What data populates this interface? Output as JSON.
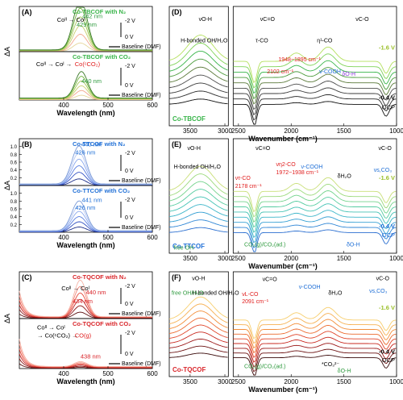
{
  "chart_data": [
    {
      "type": "line",
      "panel": "(A)",
      "sub": [
        {
          "label": "Co-TBCOF with N₂",
          "label_color": "#39b54a",
          "ylim": [
            0,
            1
          ],
          "series_colors": [
            "#e5d69a",
            "#f2a78e",
            "#c9cf6e",
            "#a6c95a",
            "#6fb33c",
            "#3b7a27"
          ],
          "peaks": [
            429,
            442
          ],
          "peak_amp": [
            0.45,
            0.78
          ],
          "annotations": [
            {
              "text": "429 nm",
              "x": 429,
              "y": 0.55,
              "color": "#2e9a3e"
            },
            {
              "text": "442 nm",
              "x": 442,
              "y": 0.74,
              "color": "#2e9a3e"
            },
            {
              "text": "Coᴵᴵ → Coᴵ",
              "x": 385,
              "y": 0.66,
              "color": "#000000"
            }
          ],
          "legend": [
            "-2 V",
            "0 V",
            "Baseline (DMF)"
          ]
        },
        {
          "label": "Co-TBCOF with CO₂",
          "label_color": "#39b54a",
          "ylim": [
            0,
            1
          ],
          "series_colors": [
            "#e5d69a",
            "#f2a78e",
            "#c9cf6e",
            "#a6c95a",
            "#6fb33c",
            "#3b7a27"
          ],
          "peaks": [
            440
          ],
          "peak_amp": [
            0.55
          ],
          "annotations": [
            {
              "text": "Coᴵᴵ → Coᴵ → ",
              "x": 338,
              "y": 0.7,
              "color": "#000000"
            },
            {
              "text": "Co(ᶜCO₂)",
              "x": 425,
              "y": 0.7,
              "color": "#e01b1b"
            },
            {
              "text": "440 nm",
              "x": 440,
              "y": 0.35,
              "color": "#2e9a3e"
            }
          ],
          "legend": [
            "-2 V",
            "0 V",
            "Baseline (DMF)"
          ]
        }
      ],
      "xlabel": "Wavelength (nm)",
      "ylabel": "ΔA",
      "xlim": [
        300,
        600
      ],
      "xticks": [
        400,
        500,
        600
      ]
    },
    {
      "type": "line",
      "panel": "(B)",
      "sub": [
        {
          "label": "Co-TTCOF with N₂",
          "label_color": "#1f6fd6",
          "ylim": [
            0,
            1.2
          ],
          "yticks": [
            0.0,
            0.2,
            0.4,
            0.6,
            0.8,
            1.0,
            1.2
          ],
          "series_colors": [
            "#1c2e8a",
            "#3352c2",
            "#5a7fe0",
            "#8aa8ee",
            "#b6c7f2",
            "#7a9ad8"
          ],
          "peaks": [
            426,
            440
          ],
          "peak_amp": [
            0.45,
            0.65
          ],
          "annotations": [
            {
              "text": "426 nm",
              "x": 426,
              "y": 0.8,
              "color": "#1f6fd6"
            },
            {
              "text": "440 nm",
              "x": 440,
              "y": 1.0,
              "color": "#1f6fd6"
            }
          ],
          "legend": [
            "-2 V",
            "0 V",
            "Baseline (DMF)"
          ]
        },
        {
          "label": "Co-TTCOF with CO₂",
          "label_color": "#1f6fd6",
          "ylim": [
            0,
            1.2
          ],
          "yticks": [
            0.0,
            0.2,
            0.4,
            0.6,
            0.8,
            1.0,
            1.2
          ],
          "series_colors": [
            "#1c2e8a",
            "#3352c2",
            "#5a7fe0",
            "#8aa8ee",
            "#b6c7f2",
            "#7a9ad8"
          ],
          "peaks": [
            426,
            441
          ],
          "peak_amp": [
            0.38,
            0.5
          ],
          "annotations": [
            {
              "text": "426 nm",
              "x": 426,
              "y": 0.58,
              "color": "#1f6fd6"
            },
            {
              "text": "441 nm",
              "x": 441,
              "y": 0.78,
              "color": "#1f6fd6"
            }
          ],
          "legend": [
            "-2 V",
            "0 V",
            "Baseline (DMF)"
          ]
        }
      ],
      "xlabel": "Wavelength (nm)",
      "ylabel": "ΔA",
      "xlim": [
        300,
        600
      ],
      "xticks": [
        400,
        500,
        600
      ]
    },
    {
      "type": "line",
      "panel": "(C)",
      "sub": [
        {
          "label": "Co-TQCOF with N₂",
          "label_color": "#d9252a",
          "ylim": [
            0,
            1
          ],
          "series_colors": [
            "#5a0d0d",
            "#8c1515",
            "#c22121",
            "#e84a3a",
            "#f2877a",
            "#f6b3a6"
          ],
          "peaks": [
            434,
            440
          ],
          "peak_amp": [
            0.35,
            0.45
          ],
          "annotations": [
            {
              "text": "Coᴵᴵ → Coᴵ",
              "x": 395,
              "y": 0.6,
              "color": "#000000"
            },
            {
              "text": "434 nm",
              "x": 420,
              "y": 0.33,
              "color": "#d9252a"
            },
            {
              "text": "440 nm",
              "x": 450,
              "y": 0.52,
              "color": "#d9252a"
            }
          ],
          "legend": [
            "-2 V",
            "0 V",
            "Baseline (DMF)"
          ]
        },
        {
          "label": "Co-TQCOF with CO₂",
          "label_color": "#d9252a",
          "ylim": [
            0,
            1
          ],
          "series_colors": [
            "#5a0d0d",
            "#8c1515",
            "#c22121",
            "#e84a3a",
            "#f2877a",
            "#f6b3a6"
          ],
          "peaks": [
            438
          ],
          "peak_amp": [
            0.1
          ],
          "annotations": [
            {
              "text": "Coᴵᴵ → Coᴵ",
              "x": 340,
              "y": 0.78,
              "color": "#000000"
            },
            {
              "text": "→ Co(ᶜCO₂) → ",
              "x": 340,
              "y": 0.62,
              "color": "#000000"
            },
            {
              "text": "CO(g)",
              "x": 425,
              "y": 0.62,
              "color": "#e01b1b"
            },
            {
              "text": "438 nm",
              "x": 438,
              "y": 0.2,
              "color": "#d9252a"
            }
          ],
          "legend": [
            "-2 V",
            "0 V",
            "Baseline (DMF)"
          ]
        }
      ],
      "xlabel": "Wavelength (nm)",
      "ylabel": "ΔA",
      "xlim": [
        300,
        600
      ],
      "xticks": [
        400,
        500,
        600
      ]
    },
    {
      "type": "line",
      "panel": "(D)",
      "sample_label": "Co-TBCOF",
      "sample_color": "#39b54a",
      "xlabel": "Wavenumber (cm⁻¹)",
      "ylabel": "",
      "xlim": [
        3800,
        1000
      ],
      "break": [
        2950,
        2550
      ],
      "xticks": [
        3500,
        3000,
        2500,
        2000,
        1500,
        1000
      ],
      "series_colors": [
        "#111111",
        "#2a2a2a",
        "#3b3b3b",
        "#4d4d4d",
        "#5b7a3a",
        "#4a9a3a",
        "#39b54a",
        "#7fd357",
        "#b4e05e"
      ],
      "labels": {
        "top": "-1.6 V",
        "mid": "-0.4 V",
        "bottom": "OCP"
      },
      "annotations": [
        {
          "text": "νO-H",
          "color": "#000000"
        },
        {
          "text": "H-bonded OH/H₂O",
          "color": "#000000"
        },
        {
          "text": "νC=O",
          "color": "#000000"
        },
        {
          "text": "νC-O",
          "color": "#000000"
        },
        {
          "text": "τ-CO",
          "color": "#000000"
        },
        {
          "text": "η¹-CO",
          "color": "#000000"
        },
        {
          "text": "1948−1895 cm⁻¹",
          "color": "#e01b1b"
        },
        {
          "text": "2102 cm⁻¹",
          "color": "#e01b1b"
        },
        {
          "text": "ν-COOH",
          "color": "#1f6fd6"
        },
        {
          "text": "δO-H",
          "color": "#8a3bd6"
        }
      ]
    },
    {
      "type": "line",
      "panel": "(E)",
      "sample_label": "Co-TTCOF",
      "sample_color": "#1f6fd6",
      "xlabel": "Wavenumber (cm⁻¹)",
      "ylabel": "",
      "xlim": [
        3800,
        1000
      ],
      "break": [
        2950,
        2550
      ],
      "xticks": [
        3500,
        3000,
        2500,
        2000,
        1500,
        1000
      ],
      "series_colors": [
        "#2b6fd0",
        "#2f86d6",
        "#349fd3",
        "#3bb5c9",
        "#45c3b5",
        "#56cca0",
        "#73d38c",
        "#9cda7c",
        "#c9df78"
      ],
      "labels": {
        "top": "-1.6 V",
        "mid": "-0.4 V",
        "bottom": "OCP"
      },
      "annotations": [
        {
          "text": "νO-H",
          "color": "#000000"
        },
        {
          "text": "H-bonded OH/H₂O",
          "color": "#000000"
        },
        {
          "text": "free OH",
          "color": "#2e9a3e"
        },
        {
          "text": "νC=O",
          "color": "#000000"
        },
        {
          "text": "νη2-CO",
          "color": "#e01b1b"
        },
        {
          "text": "1972−1938 cm⁻¹",
          "color": "#e01b1b"
        },
        {
          "text": "ντ-CO",
          "color": "#e01b1b"
        },
        {
          "text": "2178 cm⁻¹",
          "color": "#e01b1b"
        },
        {
          "text": "ν-COOH",
          "color": "#1f6fd6"
        },
        {
          "text": "δH₂O",
          "color": "#000000"
        },
        {
          "text": "νC-O",
          "color": "#000000"
        },
        {
          "text": "νs,CO₃",
          "color": "#1f6fd6"
        },
        {
          "text": "CO₂(g)/CO₂(ad.)",
          "color": "#2e9a3e"
        },
        {
          "text": "δO-H",
          "color": "#1f6fd6"
        }
      ]
    },
    {
      "type": "line",
      "panel": "(F)",
      "sample_label": "Co-TQCOF",
      "sample_color": "#d9252a",
      "xlabel": "Wavenumber (cm⁻¹)",
      "ylabel": "",
      "xlim": [
        3800,
        1000
      ],
      "break": [
        2950,
        2550
      ],
      "xticks": [
        3500,
        3000,
        2500,
        2000,
        1500,
        1000
      ],
      "series_colors": [
        "#3a0a0a",
        "#6b1010",
        "#9c1a1a",
        "#c8281f",
        "#e0452a",
        "#ec6a2f",
        "#f38f3b",
        "#f6b052",
        "#f7ce6d"
      ],
      "labels": {
        "top": "-1.6 V",
        "mid": "-0.4 V",
        "bottom": "OCP"
      },
      "annotations": [
        {
          "text": "νO-H",
          "color": "#000000"
        },
        {
          "text": "H-bonded OH/H₂O",
          "color": "#000000"
        },
        {
          "text": "free OH/H₂O",
          "color": "#2e9a3e"
        },
        {
          "text": "νC=O",
          "color": "#000000"
        },
        {
          "text": "νL-CO",
          "color": "#e01b1b"
        },
        {
          "text": "2091 cm⁻¹",
          "color": "#e01b1b"
        },
        {
          "text": "ν-COOH",
          "color": "#1f6fd6"
        },
        {
          "text": "δH₂O",
          "color": "#000000"
        },
        {
          "text": "νC-O",
          "color": "#000000"
        },
        {
          "text": "νs,CO₃",
          "color": "#1f6fd6"
        },
        {
          "text": "CO₂(g)/CO₂(ad.)",
          "color": "#2e9a3e"
        },
        {
          "text": "*CO₃²⁻",
          "color": "#000000"
        },
        {
          "text": "δO-H",
          "color": "#2e9a3e"
        }
      ]
    }
  ]
}
